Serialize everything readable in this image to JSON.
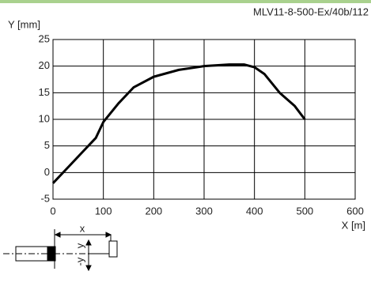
{
  "chart_data": {
    "type": "line",
    "title": "MLV11-8-500-Ex/40b/112",
    "ylabel": "Y [mm]",
    "xlabel": "X [m]",
    "x": [
      0,
      30,
      60,
      85,
      100,
      130,
      160,
      200,
      250,
      300,
      350,
      380,
      400,
      420,
      450,
      480,
      500
    ],
    "values": [
      -2,
      1,
      4,
      6.5,
      9.5,
      13,
      16,
      18,
      19.3,
      20,
      20.3,
      20.3,
      19.8,
      18.5,
      15,
      12.5,
      10
    ],
    "color": "#000000",
    "xlim": [
      0,
      600
    ],
    "xticks": [
      0,
      100,
      200,
      300,
      400,
      500,
      600
    ],
    "ylim": [
      -5,
      25
    ],
    "yticks": [
      -5,
      0,
      5,
      10,
      15,
      20,
      25
    ],
    "grid": true
  },
  "diagram": {
    "x_label": "x",
    "y_label": "y",
    "neg_y_label": "-y"
  }
}
